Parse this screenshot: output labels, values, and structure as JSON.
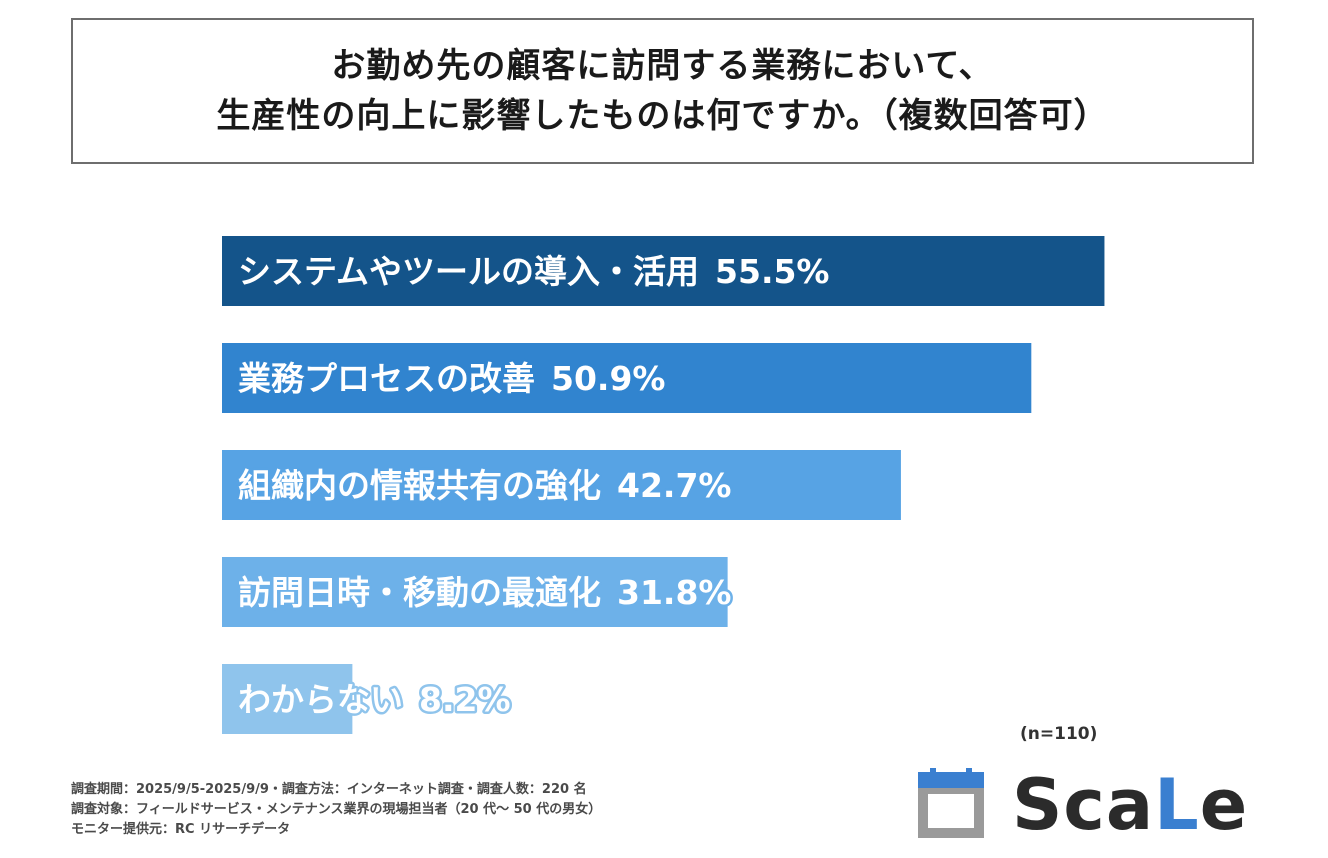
{
  "question": {
    "line1": "お勤め先の顧客に訪問する業務において、",
    "line2": "生産性の向上に影響したものは何ですか。（複数回答可）"
  },
  "chart_data": {
    "type": "bar",
    "orientation": "horizontal",
    "categories": [
      "システムやツールの導入・活用",
      "業務プロセスの改善",
      "組織内の情報共有の強化",
      "訪問日時・移動の最適化",
      "わからない"
    ],
    "values": [
      55.5,
      50.9,
      42.7,
      31.8,
      8.2
    ],
    "value_labels": [
      "55.5%",
      "50.9%",
      "42.7%",
      "31.8%",
      "8.2%"
    ],
    "unit": "%",
    "colors": [
      "#14548a",
      "#3184cf",
      "#57a3e4",
      "#6db1e9",
      "#8fc4ec"
    ],
    "xlim": [
      0,
      100
    ],
    "sample_size": "(n=110)"
  },
  "notes": {
    "line1": "調査期間：2025/9/5-2025/9/9・調査方法：インターネット調査・調査人数：220 名",
    "line2": "調査対象：フィールドサービス・メンテナンス業界の現場担当者（20 代〜 50 代の男女）",
    "line3": "モニター提供元：RC リサーチデータ"
  },
  "logo": {
    "text_main": "Sca",
    "text_accent": "L",
    "text_tail": "e",
    "accent_color": "#3a7fd0",
    "icon": "calendar-icon"
  }
}
